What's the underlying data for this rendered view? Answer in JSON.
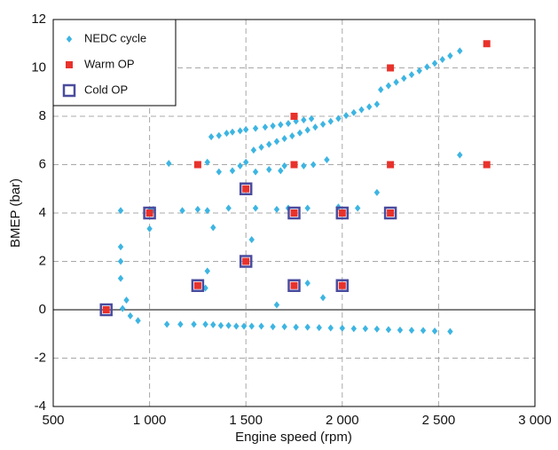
{
  "chart_data": {
    "type": "scatter",
    "xlabel": "Engine speed (rpm)",
    "ylabel": "BMEP (bar)",
    "xlim": [
      500,
      3000
    ],
    "ylim": [
      -4,
      12
    ],
    "xticks": [
      500,
      {
        "value": 1000,
        "label": "1 000"
      },
      {
        "value": 1500,
        "label": "1 500"
      },
      {
        "value": 2000,
        "label": "2 000"
      },
      {
        "value": 2500,
        "label": "2 500"
      },
      {
        "value": 3000,
        "label": "3 000"
      }
    ],
    "yticks": [
      -4,
      -2,
      0,
      2,
      4,
      6,
      8,
      10,
      12
    ],
    "grid": true,
    "legend": "upper left",
    "series": [
      {
        "name": "NEDC cycle",
        "color": "#3db5e2",
        "marker": "diamond",
        "x": [
          775,
          850,
          850,
          850,
          850,
          860,
          880,
          900,
          940,
          1000,
          1000,
          1020,
          1100,
          1170,
          1250,
          1300,
          1290,
          1300,
          1330,
          1320,
          1360,
          1400,
          1430,
          1470,
          1500,
          1550,
          1600,
          1640,
          1680,
          1720,
          1760,
          1800,
          1840,
          1300,
          1360,
          1430,
          1470,
          1500,
          1550,
          1620,
          1680,
          1700,
          1800,
          1850,
          1920,
          1540,
          1580,
          1620,
          1660,
          1700,
          1740,
          1780,
          1820,
          1860,
          1900,
          1940,
          1980,
          2020,
          2060,
          2100,
          2140,
          2180,
          2200,
          2240,
          2280,
          2320,
          2360,
          2400,
          2440,
          2480,
          2520,
          2560,
          2610,
          1410,
          1550,
          1660,
          1720,
          1820,
          1980,
          2080,
          2180,
          1530,
          1660,
          1820,
          1900,
          2610,
          1090,
          1160,
          1230,
          1290,
          1330,
          1370,
          1410,
          1450,
          1490,
          1530,
          1580,
          1640,
          1700,
          1760,
          1820,
          1880,
          1940,
          2000,
          2060,
          2120,
          2180,
          2240,
          2300,
          2360,
          2420,
          2480,
          2560
        ],
        "values": [
          0,
          4.1,
          2.6,
          2.0,
          1.3,
          0.05,
          0.4,
          -0.25,
          -0.45,
          3.35,
          4.1,
          4.15,
          6.05,
          4.1,
          4.15,
          4.1,
          0.9,
          1.6,
          3.4,
          7.15,
          7.2,
          7.3,
          7.35,
          7.4,
          7.45,
          7.5,
          7.55,
          7.6,
          7.65,
          7.7,
          7.8,
          7.85,
          7.9,
          6.1,
          5.7,
          5.75,
          5.95,
          6.1,
          5.7,
          5.8,
          5.75,
          5.95,
          5.95,
          6.0,
          6.2,
          6.6,
          6.72,
          6.84,
          6.96,
          7.08,
          7.19,
          7.31,
          7.43,
          7.55,
          7.67,
          7.79,
          7.91,
          8.03,
          8.15,
          8.27,
          8.39,
          8.5,
          9.1,
          9.26,
          9.41,
          9.57,
          9.72,
          9.88,
          10.04,
          10.19,
          10.35,
          10.5,
          10.7,
          4.2,
          4.2,
          4.15,
          4.2,
          4.2,
          4.25,
          4.2,
          4.85,
          2.9,
          0.2,
          1.1,
          0.5,
          6.4,
          -0.6,
          -0.6,
          -0.6,
          -0.6,
          -0.62,
          -0.65,
          -0.65,
          -0.68,
          -0.68,
          -0.68,
          -0.68,
          -0.7,
          -0.7,
          -0.72,
          -0.72,
          -0.74,
          -0.75,
          -0.76,
          -0.78,
          -0.78,
          -0.8,
          -0.82,
          -0.84,
          -0.85,
          -0.86,
          -0.88,
          -0.9
        ]
      },
      {
        "name": "Warm OP",
        "color": "#e8322b",
        "marker": "square",
        "x": [
          775,
          1000,
          1250,
          1250,
          1500,
          1500,
          1750,
          1750,
          1750,
          1750,
          2000,
          2000,
          2250,
          2250,
          2250,
          2750,
          2750
        ],
        "values": [
          0,
          4,
          1,
          6,
          5,
          2,
          8,
          6,
          4,
          1,
          4,
          1,
          10,
          6,
          4,
          11,
          6
        ]
      },
      {
        "name": "Cold OP",
        "color": "#4a4c9e",
        "marker": "open-square",
        "x": [
          775,
          1000,
          1250,
          1500,
          1500,
          1750,
          1750,
          2000,
          2000,
          2250
        ],
        "values": [
          0,
          4,
          1,
          5,
          2,
          4,
          1,
          4,
          1,
          4
        ]
      }
    ]
  }
}
